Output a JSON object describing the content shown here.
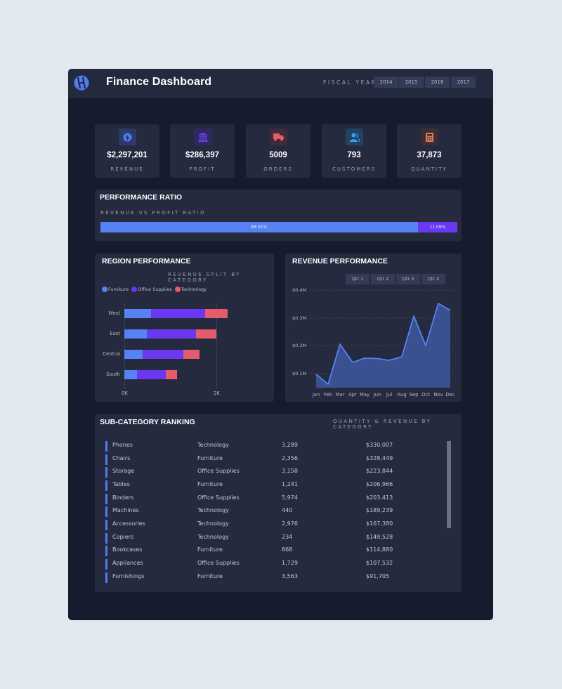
{
  "header": {
    "title": "Finance Dashboard",
    "logo_icon": "logo-icon",
    "fiscal_year_label": "FISCAL YEAR",
    "years": [
      "2014",
      "2015",
      "2016",
      "2017"
    ]
  },
  "kpis": [
    {
      "icon": "dollar-coin-icon",
      "value": "$2,297,201",
      "label": "REVENUE",
      "color": "#4e7df1",
      "bg": "#2c3a66"
    },
    {
      "icon": "bank-icon",
      "value": "$286,397",
      "label": "PROFIT",
      "color": "#6a3df0",
      "bg": "#2f2a5e"
    },
    {
      "icon": "truck-icon",
      "value": "5009",
      "label": "ORDERS",
      "color": "#e45c6b",
      "bg": "#40293a"
    },
    {
      "icon": "users-icon",
      "value": "793",
      "label": "CUSTOMERS",
      "color": "#3aa0f0",
      "bg": "#234262"
    },
    {
      "icon": "calculator-icon",
      "value": "37,873",
      "label": "QUANTITY",
      "color": "#e07a52",
      "bg": "#3b2e36"
    }
  ],
  "performance_ratio": {
    "title": "PERFORMANCE RATIO",
    "subtitle": "REVENUE VS PROFIT RATIO",
    "segments": [
      {
        "label": "88.91%",
        "value": 88.91,
        "color": "#5682f3"
      },
      {
        "label": "11.09%",
        "value": 11.09,
        "color": "#6a38f0"
      }
    ]
  },
  "region_performance": {
    "title": "REGION PERFORMANCE",
    "subtitle": "REVENUE SPLIT BY CATEGORY"
  },
  "revenue_performance": {
    "title": "REVENUE PERFORMANCE",
    "quarters": [
      "Qtr 1",
      "Qtr 2",
      "Qtr 3",
      "Qtr 4"
    ]
  },
  "chart_data": [
    {
      "type": "bar",
      "orientation": "horizontal",
      "stacked": true,
      "title": "REGION PERFORMANCE",
      "subtitle": "REVENUE SPLIT BY CATEGORY",
      "categories": [
        "West",
        "East",
        "Central",
        "South"
      ],
      "series": [
        {
          "name": "Furniture",
          "color": "#5682f3",
          "values": [
            0.58,
            0.49,
            0.4,
            0.27
          ]
        },
        {
          "name": "Office Supplies",
          "color": "#6a38f0",
          "values": [
            1.18,
            1.07,
            0.89,
            0.63
          ]
        },
        {
          "name": "Technology",
          "color": "#e45c6b",
          "values": [
            0.49,
            0.44,
            0.35,
            0.24
          ]
        }
      ],
      "xlabel": "",
      "ylabel": "",
      "x_ticks": [
        "0K",
        "2K"
      ],
      "xlim": [
        0,
        2.4
      ],
      "unit": "K",
      "legend_position": "top-left",
      "grid": "dotted vertical at ticks"
    },
    {
      "type": "area",
      "title": "REVENUE PERFORMANCE",
      "x": [
        "Jan",
        "Feb",
        "Mar",
        "Apr",
        "May",
        "Jun",
        "Jul",
        "Aug",
        "Sep",
        "Oct",
        "Nov",
        "Dec"
      ],
      "series": [
        {
          "name": "Revenue",
          "color": "#5682f3",
          "values": [
            0.097,
            0.061,
            0.205,
            0.139,
            0.155,
            0.153,
            0.147,
            0.16,
            0.307,
            0.201,
            0.353,
            0.326
          ]
        }
      ],
      "y_ticks": [
        "$0.1M",
        "$0.2M",
        "$0.3M",
        "$0.4M"
      ],
      "ylim": [
        0.05,
        0.4
      ],
      "unit": "$M",
      "grid": "dotted horizontal"
    }
  ],
  "ranking": {
    "title": "SUB-CATEGORY RANKING",
    "subtitle": "QUANTITY & REVENUE BY CATEGORY",
    "rows": [
      {
        "name": "Phones",
        "category": "Technology",
        "quantity": "3,289",
        "revenue": "$330,007"
      },
      {
        "name": "Chairs",
        "category": "Furniture",
        "quantity": "2,356",
        "revenue": "$328,449"
      },
      {
        "name": "Storage",
        "category": "Office Supplies",
        "quantity": "3,158",
        "revenue": "$223,844"
      },
      {
        "name": "Tables",
        "category": "Furniture",
        "quantity": "1,241",
        "revenue": "$206,966"
      },
      {
        "name": "Binders",
        "category": "Office Supplies",
        "quantity": "5,974",
        "revenue": "$203,413"
      },
      {
        "name": "Machines",
        "category": "Technology",
        "quantity": "440",
        "revenue": "$189,239"
      },
      {
        "name": "Accessories",
        "category": "Technology",
        "quantity": "2,976",
        "revenue": "$167,380"
      },
      {
        "name": "Copiers",
        "category": "Technology",
        "quantity": "234",
        "revenue": "$149,528"
      },
      {
        "name": "Bookcases",
        "category": "Furniture",
        "quantity": "868",
        "revenue": "$114,880"
      },
      {
        "name": "Appliances",
        "category": "Office Supplies",
        "quantity": "1,729",
        "revenue": "$107,532"
      },
      {
        "name": "Furnishings",
        "category": "Furniture",
        "quantity": "3,563",
        "revenue": "$91,705"
      }
    ]
  }
}
